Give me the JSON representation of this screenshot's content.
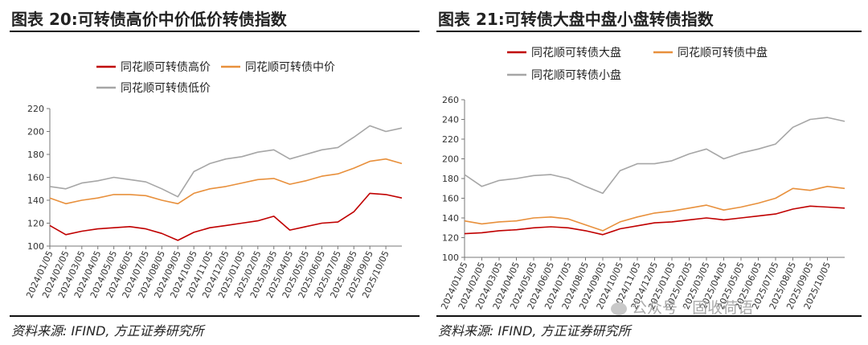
{
  "panels": [
    {
      "title": "图表 20:可转债高价中价低价转债指数",
      "source": "资料来源: IFIND, 方正证券研究所"
    },
    {
      "title": "图表 21:可转债大盘中盘小盘转债指数",
      "source": "资料来源: IFIND, 方正证券研究所"
    }
  ],
  "watermark": "公众号 · 固收荷语",
  "chart_data": [
    {
      "type": "line",
      "x": [
        "2024/01/05",
        "2024/02/05",
        "2024/03/05",
        "2024/04/05",
        "2024/05/05",
        "2024/06/05",
        "2024/07/05",
        "2024/08/05",
        "2024/09/05",
        "2024/10/05",
        "2024/11/05",
        "2024/12/05",
        "2025/01/05",
        "2025/02/05",
        "2025/03/05",
        "2025/04/05",
        "2025/05/05",
        "2025/06/05",
        "2025/07/05",
        "2025/08/05",
        "2025/09/05",
        "2025/10/05",
        "2025/10/25"
      ],
      "series": [
        {
          "name": "同花顺可转债高价",
          "color": "#c00000",
          "values": [
            118,
            110,
            113,
            115,
            116,
            117,
            115,
            111,
            105,
            112,
            116,
            118,
            120,
            122,
            126,
            114,
            117,
            120,
            121,
            130,
            146,
            145,
            142
          ]
        },
        {
          "name": "同花顺可转债中价",
          "color": "#e8903c",
          "values": [
            142,
            137,
            140,
            142,
            145,
            145,
            144,
            140,
            137,
            146,
            150,
            152,
            155,
            158,
            159,
            154,
            157,
            161,
            163,
            168,
            174,
            176,
            172
          ]
        },
        {
          "name": "同花顺可转债低价",
          "color": "#a6a6a6",
          "values": [
            152,
            150,
            155,
            157,
            160,
            158,
            156,
            150,
            143,
            165,
            172,
            176,
            178,
            182,
            184,
            176,
            180,
            184,
            186,
            195,
            205,
            200,
            203
          ]
        }
      ],
      "ylim": [
        100,
        220
      ],
      "yticks": [
        100,
        120,
        140,
        160,
        180,
        200,
        220
      ],
      "xticks": [
        "2024/01/05",
        "2024/02/05",
        "2024/03/05",
        "2024/04/05",
        "2024/05/05",
        "2024/06/05",
        "2024/07/05",
        "2024/08/05",
        "2024/09/05",
        "2024/10/05",
        "2024/11/05",
        "2024/12/05",
        "2025/01/05",
        "2025/02/05",
        "2025/03/05",
        "2025/04/05",
        "2025/05/05",
        "2025/06/05",
        "2025/07/05",
        "2025/08/05",
        "2025/09/05",
        "2025/10/05"
      ],
      "legend": "top"
    },
    {
      "type": "line",
      "x": [
        "2024/01/05",
        "2024/02/05",
        "2024/03/05",
        "2024/04/05",
        "2024/05/05",
        "2024/06/05",
        "2024/07/05",
        "2024/08/05",
        "2024/09/05",
        "2024/10/05",
        "2024/11/05",
        "2024/12/05",
        "2025/01/05",
        "2025/02/05",
        "2025/03/05",
        "2025/04/05",
        "2025/05/05",
        "2025/06/05",
        "2025/07/05",
        "2025/08/05",
        "2025/09/05",
        "2025/10/05",
        "2025/10/25"
      ],
      "series": [
        {
          "name": "同花顺可转债大盘",
          "color": "#c00000",
          "values": [
            124,
            125,
            127,
            128,
            130,
            131,
            130,
            127,
            123,
            129,
            132,
            135,
            136,
            138,
            140,
            138,
            140,
            142,
            144,
            149,
            152,
            151,
            150
          ]
        },
        {
          "name": "同花顺可转债中盘",
          "color": "#e8903c",
          "values": [
            137,
            134,
            136,
            137,
            140,
            141,
            139,
            133,
            127,
            136,
            141,
            145,
            147,
            150,
            153,
            148,
            151,
            155,
            160,
            170,
            168,
            172,
            170
          ]
        },
        {
          "name": "同花顺可转债小盘",
          "color": "#a6a6a6",
          "values": [
            184,
            172,
            178,
            180,
            183,
            184,
            180,
            172,
            165,
            188,
            195,
            195,
            198,
            205,
            210,
            200,
            206,
            210,
            215,
            232,
            240,
            242,
            238
          ]
        }
      ],
      "ylim": [
        100,
        260
      ],
      "yticks": [
        100,
        120,
        140,
        160,
        180,
        200,
        220,
        240,
        260
      ],
      "xticks": [
        "2024/01/05",
        "2024/02/05",
        "2024/03/05",
        "2024/04/05",
        "2024/05/05",
        "2024/06/05",
        "2024/07/05",
        "2024/08/05",
        "2024/09/05",
        "2024/10/05",
        "2024/11/05",
        "2024/12/05",
        "2025/01/05",
        "2025/02/05",
        "2025/03/05",
        "2025/04/05",
        "2025/05/05",
        "2025/06/05",
        "2025/07/05",
        "2025/08/05",
        "2025/09/05",
        "2025/10/05"
      ],
      "legend": "top"
    }
  ]
}
